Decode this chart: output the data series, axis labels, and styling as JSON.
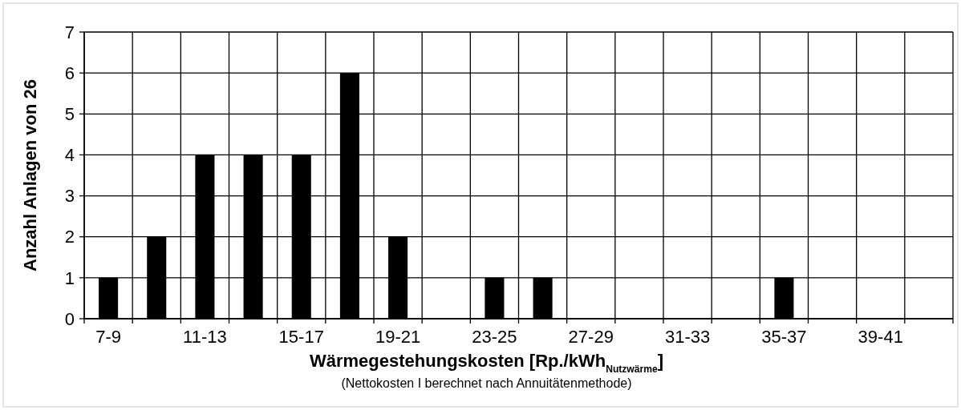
{
  "chart_data": {
    "type": "bar",
    "categories": [
      "7-9",
      null,
      "11-13",
      null,
      "15-17",
      null,
      "19-21",
      null,
      "23-25",
      null,
      "27-29",
      null,
      "31-33",
      null,
      "35-37",
      null,
      "39-41",
      null
    ],
    "values": [
      1,
      2,
      4,
      4,
      4,
      6,
      2,
      0,
      1,
      1,
      0,
      0,
      0,
      0,
      1,
      0,
      0,
      0
    ],
    "color": "#000000",
    "ylim": [
      0,
      7
    ],
    "yticks": [
      0,
      1,
      2,
      3,
      4,
      5,
      6,
      7
    ],
    "grid": true,
    "xlabel": "Wärmegestehungskosten [Rp./kWh$_{Nutzwärme}$]",
    "ylabel": "Anzahl Anlagen von 26",
    "annotations": [
      "(Nettokosten I berechnet nach Annuitätenmethode)"
    ]
  }
}
